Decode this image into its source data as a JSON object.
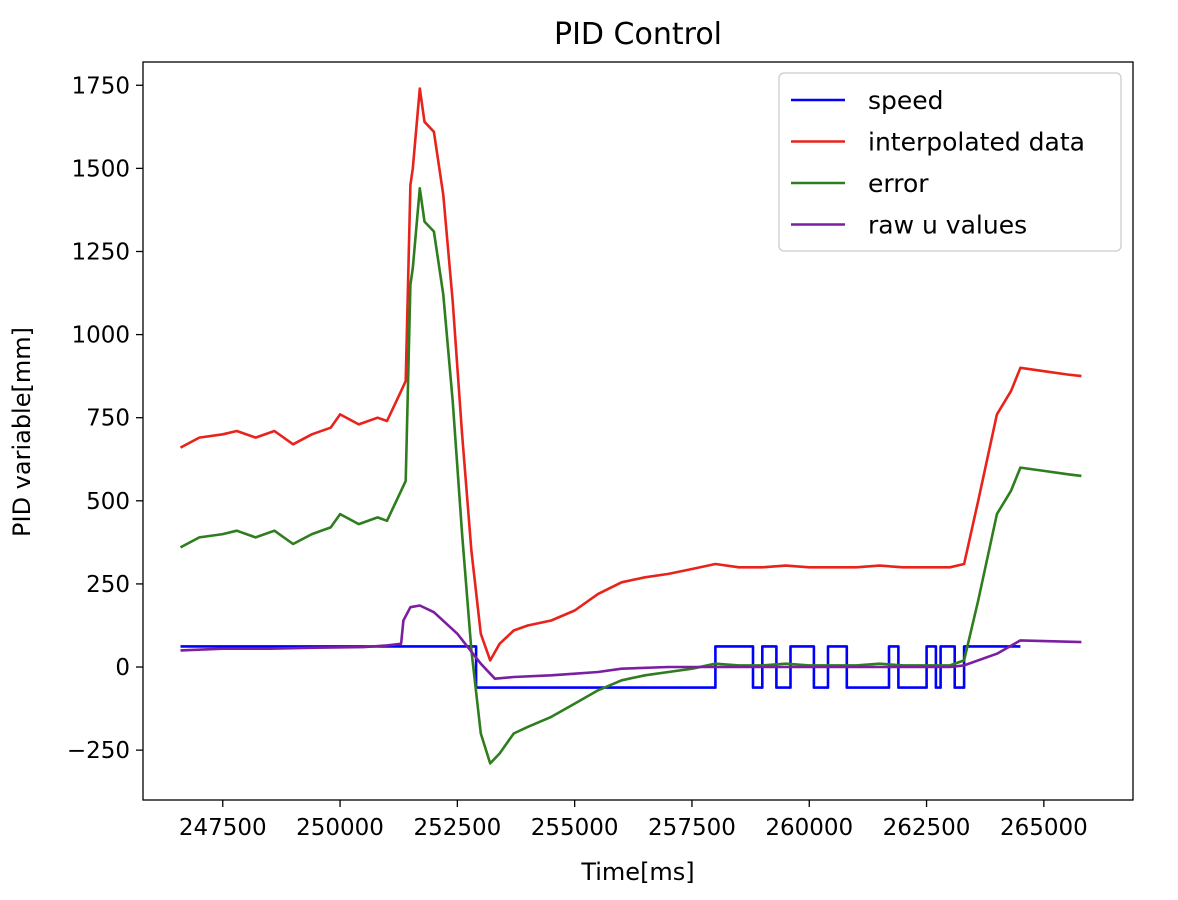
{
  "chart_data": {
    "type": "line",
    "title": "PID Control",
    "xlabel": "Time[ms]",
    "ylabel": "PID variable[mm]",
    "xlim": [
      245800,
      266900
    ],
    "ylim": [
      -400,
      1820
    ],
    "xticks": [
      247500,
      250000,
      252500,
      255000,
      257500,
      260000,
      262500,
      265000
    ],
    "yticks": [
      -250,
      0,
      250,
      500,
      750,
      1000,
      1250,
      1500,
      1750
    ],
    "xtick_labels": [
      "247500",
      "250000",
      "252500",
      "255000",
      "257500",
      "260000",
      "262500",
      "265000"
    ],
    "ytick_labels": [
      "−250",
      "0",
      "250",
      "500",
      "750",
      "1000",
      "1250",
      "1500",
      "1750"
    ],
    "grid": false,
    "legend_position": "top-right",
    "series": [
      {
        "name": "speed",
        "color": "#0000ff",
        "step": true,
        "x": [
          246600,
          252900,
          252900,
          258000,
          258000,
          258800,
          258800,
          259000,
          259000,
          259300,
          259300,
          259600,
          259600,
          260100,
          260100,
          260400,
          260400,
          260800,
          260800,
          261700,
          261700,
          261900,
          261900,
          262500,
          262500,
          262700,
          262700,
          262800,
          262800,
          263100,
          263100,
          263300,
          263300,
          264500
        ],
        "y": [
          62,
          62,
          -62,
          -62,
          62,
          62,
          -62,
          -62,
          62,
          62,
          -62,
          -62,
          62,
          62,
          -62,
          -62,
          62,
          62,
          -62,
          -62,
          62,
          62,
          -62,
          -62,
          62,
          62,
          -62,
          -62,
          62,
          62,
          -62,
          -62,
          62,
          62
        ]
      },
      {
        "name": "interpolated data",
        "color": "#e8231c",
        "x": [
          246600,
          247000,
          247500,
          247800,
          248200,
          248600,
          249000,
          249400,
          249800,
          250000,
          250400,
          250800,
          251000,
          251200,
          251300,
          251400,
          251500,
          251550,
          251700,
          251800,
          252000,
          252200,
          252400,
          252600,
          252800,
          253000,
          253200,
          253400,
          253700,
          254000,
          254500,
          255000,
          255500,
          256000,
          256500,
          257000,
          257500,
          258000,
          258500,
          259000,
          259500,
          260000,
          260500,
          261000,
          261500,
          262000,
          262500,
          263000,
          263300,
          263600,
          264000,
          264300,
          264500,
          265000,
          265500,
          265800
        ],
        "y": [
          660,
          690,
          700,
          710,
          690,
          710,
          670,
          700,
          720,
          760,
          730,
          750,
          740,
          800,
          830,
          860,
          1450,
          1500,
          1740,
          1640,
          1610,
          1420,
          1100,
          700,
          350,
          100,
          20,
          70,
          110,
          125,
          140,
          170,
          220,
          255,
          270,
          280,
          295,
          310,
          300,
          300,
          305,
          300,
          300,
          300,
          305,
          300,
          300,
          300,
          310,
          500,
          760,
          830,
          900,
          890,
          880,
          875
        ]
      },
      {
        "name": "error",
        "color": "#2e7d1e",
        "x": [
          246600,
          247000,
          247500,
          247800,
          248200,
          248600,
          249000,
          249400,
          249800,
          250000,
          250400,
          250800,
          251000,
          251200,
          251300,
          251400,
          251500,
          251550,
          251700,
          251800,
          252000,
          252200,
          252400,
          252600,
          252800,
          253000,
          253200,
          253400,
          253700,
          254000,
          254500,
          255000,
          255500,
          256000,
          256500,
          257000,
          257500,
          258000,
          258500,
          259000,
          259500,
          260000,
          260500,
          261000,
          261500,
          262000,
          262500,
          263000,
          263300,
          263600,
          264000,
          264300,
          264500,
          265000,
          265500,
          265800
        ],
        "y": [
          360,
          390,
          400,
          410,
          390,
          410,
          370,
          400,
          420,
          460,
          430,
          450,
          440,
          500,
          530,
          560,
          1150,
          1200,
          1440,
          1340,
          1310,
          1120,
          800,
          400,
          50,
          -200,
          -290,
          -260,
          -200,
          -180,
          -150,
          -110,
          -70,
          -40,
          -25,
          -15,
          -5,
          10,
          5,
          5,
          10,
          5,
          5,
          5,
          10,
          5,
          5,
          5,
          20,
          200,
          460,
          530,
          600,
          590,
          580,
          575
        ]
      },
      {
        "name": "raw u values",
        "color": "#7b1fa2",
        "x": [
          246600,
          247500,
          248500,
          249500,
          250500,
          251000,
          251300,
          251350,
          251500,
          251700,
          252000,
          252500,
          253000,
          253300,
          253700,
          254500,
          255000,
          255500,
          256000,
          257000,
          258000,
          259000,
          260000,
          261000,
          262000,
          262500,
          263000,
          263300,
          264000,
          264500,
          265000,
          265800
        ],
        "y": [
          50,
          55,
          55,
          58,
          60,
          65,
          70,
          140,
          180,
          185,
          165,
          100,
          10,
          -35,
          -30,
          -25,
          -20,
          -15,
          -5,
          0,
          0,
          0,
          0,
          0,
          0,
          0,
          0,
          5,
          40,
          80,
          78,
          75
        ]
      }
    ]
  }
}
